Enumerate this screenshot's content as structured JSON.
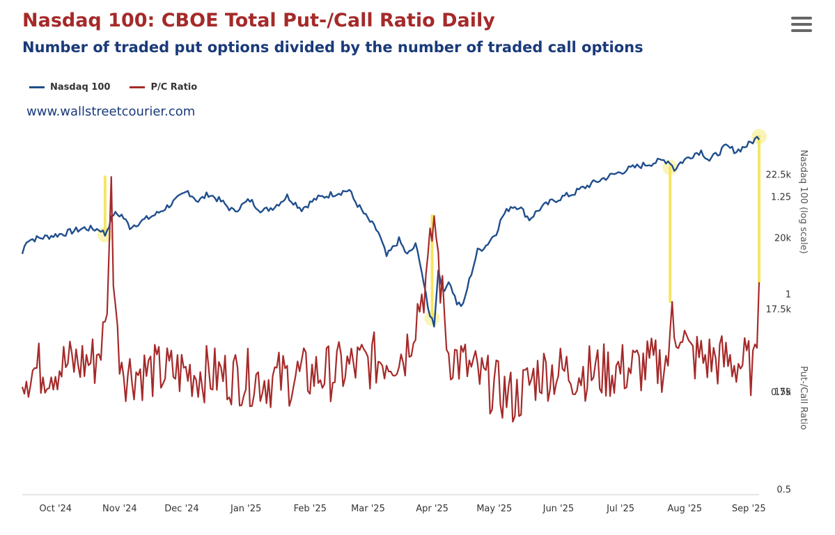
{
  "page": {
    "title": "Nasdaq 100: CBOE Total Put-/Call Ratio Daily",
    "subtitle": "Number of traded put options divided by the number of traded call options",
    "watermark": "www.wallstreetcourier.com",
    "menu_icon": "hamburger-menu-icon"
  },
  "chart_data": {
    "type": "line",
    "title": "Nasdaq 100: CBOE Total Put-/Call Ratio Daily",
    "subtitle": "Number of traded put options divided by the number of traded call options",
    "x_tick_labels": [
      "Oct '24",
      "Nov '24",
      "Dec '24",
      "Jan '25",
      "Feb '25",
      "Mar '25",
      "Apr '25",
      "May '25",
      "Jun '25",
      "Jul '25",
      "Aug '25",
      "Sep '25"
    ],
    "x_range": [
      -10,
      346
    ],
    "x_ticks_day_index": [
      0,
      31,
      61,
      92,
      123,
      151,
      182,
      212,
      243,
      273,
      304,
      335
    ],
    "legend": [
      "Nasdaq 100",
      "P/C Ratio"
    ],
    "legend_position": "top-left",
    "colors": {
      "nasdaq": "#1f4e8c",
      "pc": "#a52a2a",
      "highlight": "#f5e663"
    },
    "axes": {
      "nasdaq": {
        "title": "Nasdaq 100 (log scale)",
        "scale": "log",
        "range": [
          12420,
          25150
        ],
        "tick_values": [
          15000,
          17500,
          20000,
          22500
        ],
        "tick_labels": [
          "15k",
          "17.5k",
          "20k",
          "22.5k"
        ]
      },
      "pc": {
        "title": "Put-/Call Ratio",
        "range": [
          0.5,
          1.3
        ],
        "tick_values": [
          0.5,
          0.75,
          1,
          1.25
        ],
        "tick_labels": [
          "0.5",
          "0.75",
          "1",
          "1.25"
        ]
      }
    },
    "nasdaq_anchors": [
      [
        -10,
        19400
      ],
      [
        -8,
        19900
      ],
      [
        0,
        20000
      ],
      [
        10,
        20150
      ],
      [
        20,
        20350
      ],
      [
        28,
        20300
      ],
      [
        30,
        20100
      ],
      [
        34,
        20900
      ],
      [
        38,
        20850
      ],
      [
        42,
        20400
      ],
      [
        55,
        20900
      ],
      [
        62,
        21300
      ],
      [
        70,
        21800
      ],
      [
        75,
        21400
      ],
      [
        80,
        21700
      ],
      [
        86,
        21400
      ],
      [
        92,
        21000
      ],
      [
        100,
        21450
      ],
      [
        106,
        21000
      ],
      [
        112,
        21200
      ],
      [
        118,
        21600
      ],
      [
        125,
        21100
      ],
      [
        132,
        21500
      ],
      [
        140,
        21700
      ],
      [
        148,
        21850
      ],
      [
        150,
        21500
      ],
      [
        156,
        20800
      ],
      [
        162,
        20200
      ],
      [
        166,
        19300
      ],
      [
        172,
        19900
      ],
      [
        176,
        19350
      ],
      [
        180,
        19700
      ],
      [
        182,
        19200
      ],
      [
        186,
        17500
      ],
      [
        189,
        17000
      ],
      [
        191,
        18800
      ],
      [
        194,
        18000
      ],
      [
        196,
        18500
      ],
      [
        200,
        17700
      ],
      [
        203,
        17600
      ],
      [
        205,
        18200
      ],
      [
        210,
        19500
      ],
      [
        214,
        19700
      ],
      [
        219,
        20200
      ],
      [
        222,
        20800
      ],
      [
        226,
        21200
      ],
      [
        230,
        21200
      ],
      [
        235,
        20700
      ],
      [
        240,
        21100
      ],
      [
        246,
        21400
      ],
      [
        252,
        21600
      ],
      [
        256,
        21700
      ],
      [
        260,
        21900
      ],
      [
        265,
        22100
      ],
      [
        270,
        22300
      ],
      [
        276,
        22500
      ],
      [
        282,
        22700
      ],
      [
        290,
        22900
      ],
      [
        300,
        23100
      ],
      [
        303,
        23050
      ],
      [
        305,
        22700
      ],
      [
        308,
        23000
      ],
      [
        315,
        23400
      ],
      [
        318,
        23500
      ],
      [
        322,
        23100
      ],
      [
        326,
        23400
      ],
      [
        330,
        23700
      ],
      [
        335,
        23500
      ],
      [
        341,
        23800
      ],
      [
        346,
        24150
      ]
    ],
    "pc_baseline_anchors": [
      [
        -10,
        0.8
      ],
      [
        25,
        0.83
      ],
      [
        30,
        0.9
      ],
      [
        33,
        1.18
      ],
      [
        36,
        0.88
      ],
      [
        40,
        0.8
      ],
      [
        70,
        0.8
      ],
      [
        110,
        0.78
      ],
      [
        140,
        0.8
      ],
      [
        175,
        0.85
      ],
      [
        182,
        0.98
      ],
      [
        186,
        1.05
      ],
      [
        189,
        1.2
      ],
      [
        192,
        1.03
      ],
      [
        196,
        0.85
      ],
      [
        212,
        0.78
      ],
      [
        228,
        0.73
      ],
      [
        240,
        0.8
      ],
      [
        270,
        0.8
      ],
      [
        300,
        0.82
      ],
      [
        304,
        0.86
      ],
      [
        308,
        0.93
      ],
      [
        312,
        0.84
      ],
      [
        340,
        0.82
      ],
      [
        344,
        0.8
      ],
      [
        346,
        1.02
      ]
    ],
    "pc_spikes": [
      [
        33,
        1.3
      ],
      [
        189,
        1.2
      ],
      [
        304,
        0.98
      ],
      [
        346,
        1.03
      ]
    ],
    "pc_noise_amplitude": 0.075,
    "pc_range_observed": [
      0.66,
      1.3
    ],
    "nasdaq_range_observed": [
      17000,
      24150
    ],
    "highlights": [
      {
        "x": 30,
        "nasdaq": 20100,
        "pc": 1.3
      },
      {
        "x": 188,
        "nasdaq": 17200,
        "pc": 1.2
      },
      {
        "x": 303,
        "nasdaq": 22800,
        "pc": 0.98
      },
      {
        "x": 346,
        "nasdaq": 24150,
        "pc": 1.03
      }
    ]
  }
}
